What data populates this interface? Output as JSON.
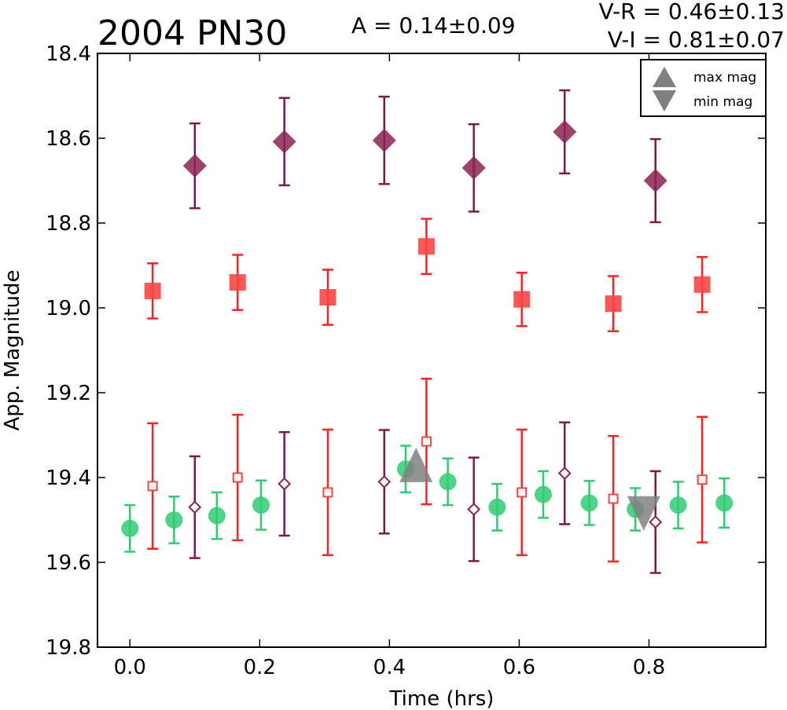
{
  "chart_data": {
    "type": "scatter",
    "title": "2004 PN30",
    "amplitude_text": "A  = 0.14±0.09",
    "color_vr_text": "V-R = 0.46±0.13",
    "color_vi_text": "V-I  = 0.81±0.07",
    "xlabel": "Time (hrs)",
    "ylabel": "App. Magnitude",
    "xlim": [
      -0.05,
      0.98
    ],
    "ylim": [
      19.8,
      18.4
    ],
    "y_inverted": true,
    "xticks": [
      "0.0",
      "0.2",
      "0.4",
      "0.6",
      "0.8"
    ],
    "yticks": [
      "18.4",
      "18.6",
      "18.8",
      "19.0",
      "19.2",
      "19.4",
      "19.6",
      "19.8"
    ],
    "grid": false,
    "legend_position": "top-right",
    "legend": [
      {
        "label": "max mag",
        "marker": "triangle-up",
        "color": "#808080"
      },
      {
        "label": "min mag",
        "marker": "triangle-down",
        "color": "#808080"
      }
    ],
    "series": [
      {
        "marker": "circle",
        "color": "#2ecc71",
        "errcolor": "#2ecc71",
        "filled": true,
        "points": [
          {
            "x": 0.0,
            "y": 19.52,
            "err": 0.055
          },
          {
            "x": 0.068,
            "y": 19.5,
            "err": 0.055
          },
          {
            "x": 0.134,
            "y": 19.49,
            "err": 0.055
          },
          {
            "x": 0.202,
            "y": 19.465,
            "err": 0.058
          },
          {
            "x": 0.425,
            "y": 19.38,
            "err": 0.055
          },
          {
            "x": 0.49,
            "y": 19.41,
            "err": 0.055
          },
          {
            "x": 0.566,
            "y": 19.47,
            "err": 0.055
          },
          {
            "x": 0.637,
            "y": 19.44,
            "err": 0.055
          },
          {
            "x": 0.708,
            "y": 19.46,
            "err": 0.052
          },
          {
            "x": 0.779,
            "y": 19.475,
            "err": 0.05
          },
          {
            "x": 0.845,
            "y": 19.465,
            "err": 0.055
          },
          {
            "x": 0.916,
            "y": 19.46,
            "err": 0.058
          }
        ]
      },
      {
        "marker": "square",
        "color": "#ff4444",
        "errcolor": "#ff2222",
        "filled": true,
        "points": [
          {
            "x": 0.035,
            "y": 18.96,
            "err": 0.065
          },
          {
            "x": 0.166,
            "y": 18.94,
            "err": 0.065
          },
          {
            "x": 0.305,
            "y": 18.975,
            "err": 0.065
          },
          {
            "x": 0.457,
            "y": 18.855,
            "err": 0.065
          },
          {
            "x": 0.604,
            "y": 18.98,
            "err": 0.063
          },
          {
            "x": 0.745,
            "y": 18.99,
            "err": 0.065
          },
          {
            "x": 0.882,
            "y": 18.945,
            "err": 0.065
          }
        ]
      },
      {
        "marker": "square",
        "color": "#ff4444",
        "errcolor": "#ff2222",
        "filled": false,
        "points": [
          {
            "x": 0.035,
            "y": 19.42,
            "err": 0.148
          },
          {
            "x": 0.166,
            "y": 19.4,
            "err": 0.148
          },
          {
            "x": 0.305,
            "y": 19.435,
            "err": 0.148
          },
          {
            "x": 0.457,
            "y": 19.315,
            "err": 0.148
          },
          {
            "x": 0.604,
            "y": 19.435,
            "err": 0.148
          },
          {
            "x": 0.745,
            "y": 19.45,
            "err": 0.148
          },
          {
            "x": 0.882,
            "y": 19.405,
            "err": 0.148
          }
        ]
      },
      {
        "marker": "diamond",
        "color": "#8b2252",
        "errcolor": "#7a1a4a",
        "filled": true,
        "points": [
          {
            "x": 0.1,
            "y": 18.665,
            "err": 0.1
          },
          {
            "x": 0.238,
            "y": 18.608,
            "err": 0.103
          },
          {
            "x": 0.392,
            "y": 18.605,
            "err": 0.103
          },
          {
            "x": 0.53,
            "y": 18.67,
            "err": 0.103
          },
          {
            "x": 0.67,
            "y": 18.585,
            "err": 0.098
          },
          {
            "x": 0.81,
            "y": 18.7,
            "err": 0.098
          }
        ]
      },
      {
        "marker": "diamond",
        "color": "#8b2252",
        "errcolor": "#7a1a4a",
        "filled": false,
        "points": [
          {
            "x": 0.1,
            "y": 19.47,
            "err": 0.12
          },
          {
            "x": 0.238,
            "y": 19.415,
            "err": 0.122
          },
          {
            "x": 0.392,
            "y": 19.41,
            "err": 0.122
          },
          {
            "x": 0.53,
            "y": 19.475,
            "err": 0.122
          },
          {
            "x": 0.67,
            "y": 19.39,
            "err": 0.12
          },
          {
            "x": 0.81,
            "y": 19.505,
            "err": 0.12
          }
        ]
      }
    ],
    "extrema": [
      {
        "type": "max",
        "x": 0.441,
        "y": 19.38,
        "color": "#808080"
      },
      {
        "type": "min",
        "x": 0.792,
        "y": 19.475,
        "color": "#808080"
      }
    ]
  }
}
